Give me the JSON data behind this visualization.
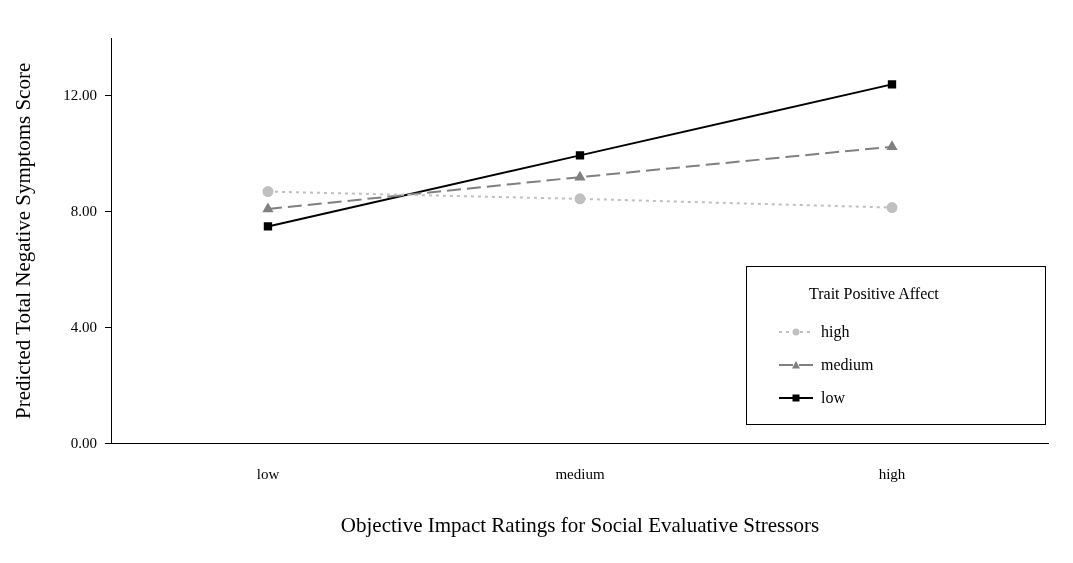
{
  "chart_data": {
    "type": "line",
    "xlabel": "Objective Impact Ratings for Social Evaluative Stressors",
    "ylabel": "Predicted Total Negative Symptoms Score",
    "legend_title": "Trait Positive Affect",
    "categories": [
      "low",
      "medium",
      "high"
    ],
    "series": [
      {
        "name": "high",
        "color": "#c0c0c0",
        "values": [
          8.7,
          8.45,
          8.15
        ],
        "marker": "circle",
        "line_style": "dotted"
      },
      {
        "name": "medium",
        "color": "#808080",
        "values": [
          8.1,
          9.2,
          10.25
        ],
        "marker": "triangle",
        "line_style": "dashed"
      },
      {
        "name": "low",
        "color": "#000000",
        "values": [
          7.5,
          9.95,
          12.4
        ],
        "marker": "square",
        "line_style": "solid"
      }
    ],
    "ylim": [
      0,
      14
    ],
    "yticks": [
      {
        "value": 0,
        "label": "0.00"
      },
      {
        "value": 4,
        "label": "4.00"
      },
      {
        "value": 8,
        "label": "8.00"
      },
      {
        "value": 12,
        "label": "12.00"
      }
    ],
    "grid": false,
    "legend": "bottom right"
  }
}
